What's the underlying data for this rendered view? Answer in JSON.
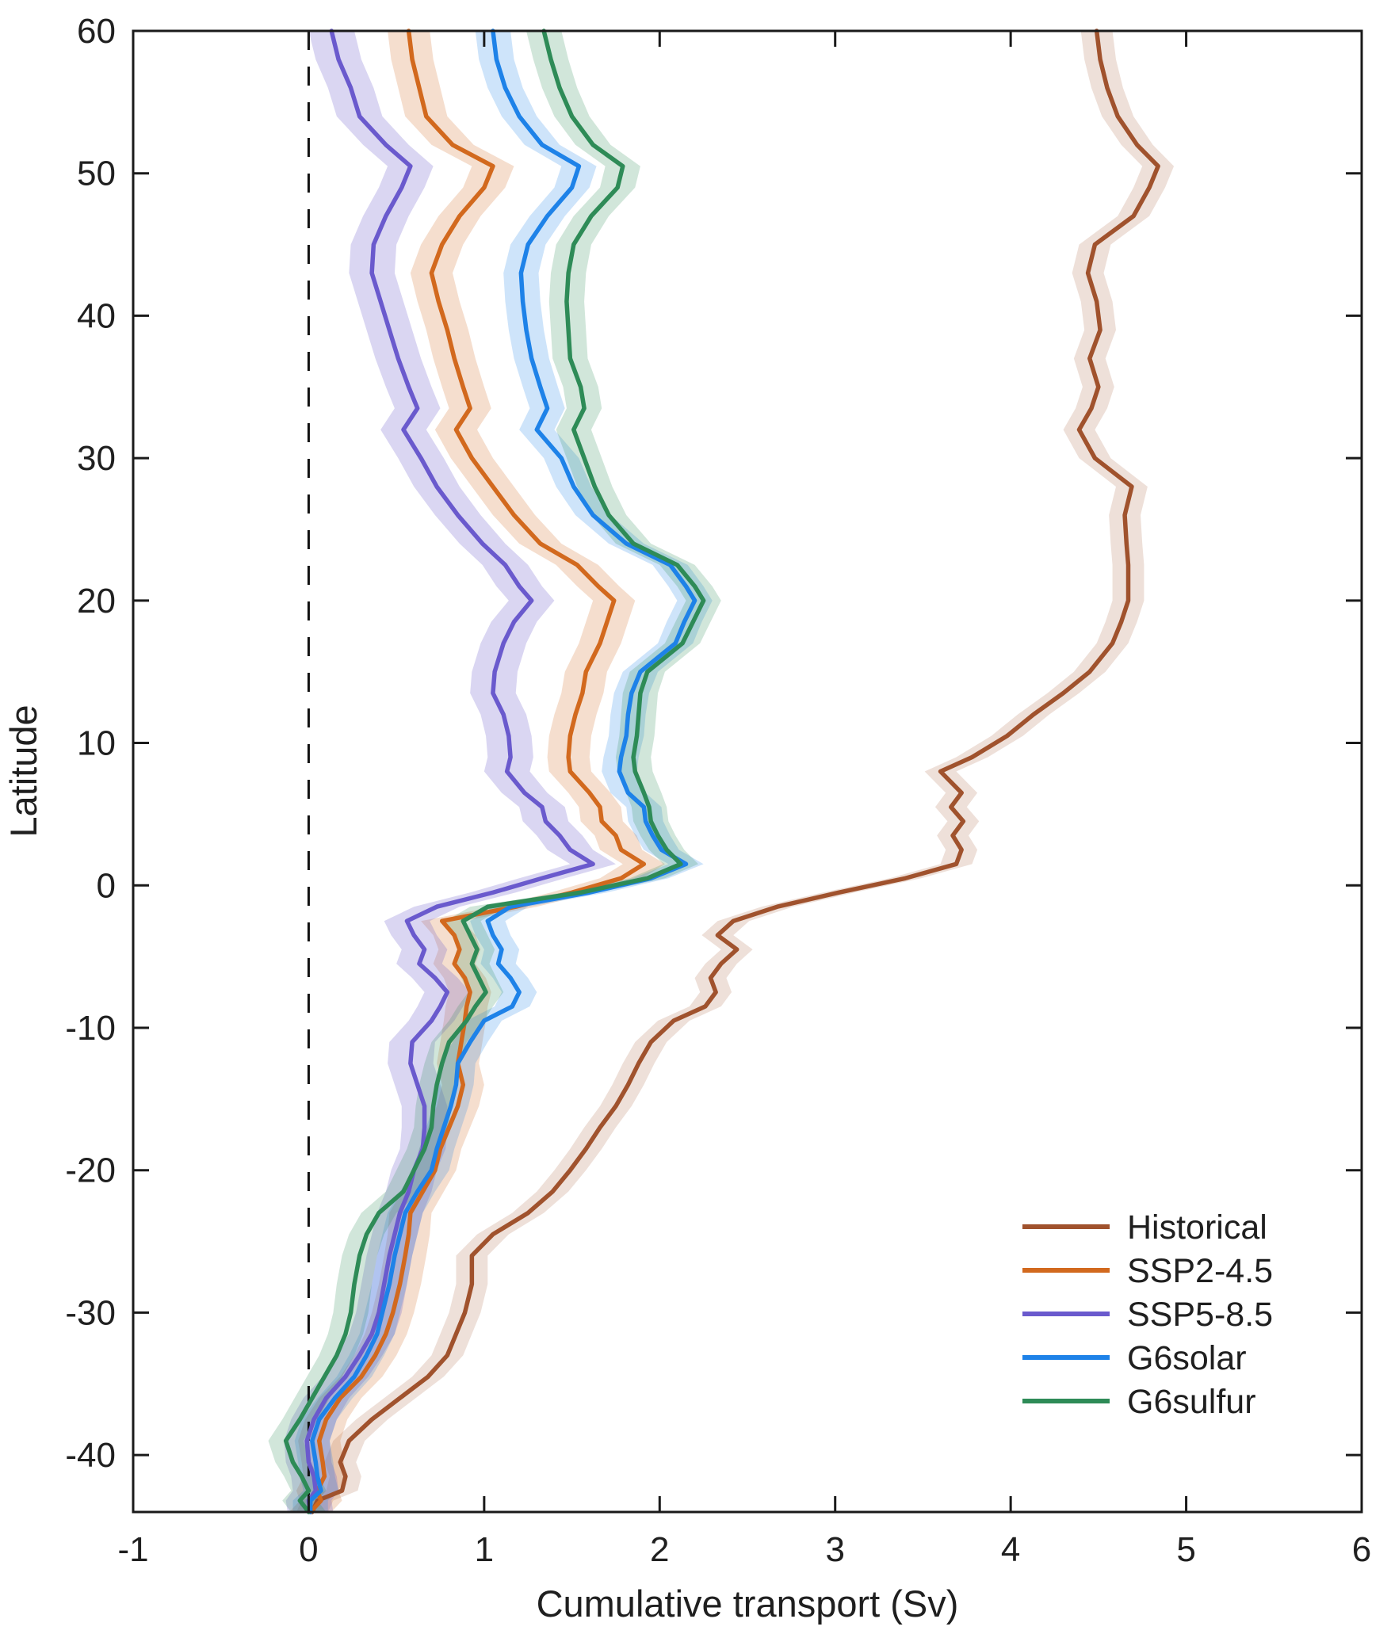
{
  "figure": {
    "background": "#ffffff",
    "axis_color": "#1a1a1a",
    "text_color": "#1f1f1f"
  },
  "chart_data": {
    "type": "line",
    "title": "",
    "xlabel": "Cumulative transport (Sv)",
    "ylabel": "Latitude",
    "xlim": [
      -1,
      6
    ],
    "ylim": [
      -44,
      60
    ],
    "xticks": [
      -1,
      0,
      1,
      2,
      3,
      4,
      5,
      6
    ],
    "yticks": [
      60,
      50,
      40,
      30,
      20,
      10,
      0,
      -10,
      -20,
      -30,
      -40
    ],
    "grid": false,
    "zero_reference_line": {
      "x": 0,
      "style": "dashed",
      "color": "#111111"
    },
    "legend": {
      "position": "lower-right",
      "frame": false,
      "entries": [
        "Historical",
        "SSP2-4.5",
        "SSP5-8.5",
        "G6solar",
        "G6sulfur"
      ]
    },
    "latitudes": [
      60,
      58,
      56,
      54,
      52,
      50.5,
      49,
      47,
      45,
      43,
      41,
      39,
      37,
      35,
      33.5,
      32,
      30,
      28,
      26,
      24,
      22.5,
      21,
      20,
      18.5,
      17,
      15,
      13.5,
      12,
      10.5,
      9,
      8,
      6.5,
      5.5,
      4.5,
      3.5,
      2.5,
      1.5,
      0.5,
      -0.5,
      -1.5,
      -2.5,
      -3.5,
      -4.5,
      -5.5,
      -6.5,
      -7.5,
      -8.5,
      -9.5,
      -11,
      -12.5,
      -14,
      -15.5,
      -17,
      -18.5,
      -20,
      -21.5,
      -23,
      -24.5,
      -26,
      -28,
      -30,
      -31.5,
      -33,
      -34.5,
      -36,
      -37.5,
      -39,
      -40.5,
      -41.5,
      -42.5,
      -43.2,
      -44
    ],
    "series": [
      {
        "name": "Historical",
        "color": "#A0522D",
        "band_opacity": 0.18,
        "band_halfwidth_sv": 0.09,
        "values": [
          4.49,
          4.51,
          4.55,
          4.61,
          4.72,
          4.84,
          4.79,
          4.7,
          4.48,
          4.44,
          4.49,
          4.51,
          4.45,
          4.5,
          4.46,
          4.39,
          4.48,
          4.69,
          4.65,
          4.66,
          4.67,
          4.67,
          4.67,
          4.63,
          4.58,
          4.45,
          4.3,
          4.13,
          3.98,
          3.78,
          3.6,
          3.72,
          3.66,
          3.73,
          3.67,
          3.72,
          3.69,
          3.4,
          3.02,
          2.67,
          2.42,
          2.33,
          2.44,
          2.35,
          2.29,
          2.32,
          2.26,
          2.08,
          1.95,
          1.88,
          1.82,
          1.75,
          1.66,
          1.58,
          1.49,
          1.39,
          1.25,
          1.05,
          0.93,
          0.93,
          0.89,
          0.84,
          0.79,
          0.68,
          0.52,
          0.36,
          0.23,
          0.18,
          0.21,
          0.19,
          0.05,
          0.02
        ]
      },
      {
        "name": "SSP2-4.5",
        "color": "#D2691E",
        "band_opacity": 0.22,
        "band_halfwidth_sv": 0.12,
        "values": [
          0.57,
          0.59,
          0.63,
          0.67,
          0.82,
          1.05,
          1.0,
          0.86,
          0.76,
          0.7,
          0.74,
          0.79,
          0.83,
          0.88,
          0.92,
          0.84,
          0.93,
          1.05,
          1.17,
          1.32,
          1.53,
          1.65,
          1.74,
          1.7,
          1.66,
          1.58,
          1.56,
          1.52,
          1.49,
          1.48,
          1.49,
          1.6,
          1.66,
          1.67,
          1.75,
          1.78,
          1.91,
          1.78,
          1.5,
          1.18,
          0.76,
          0.83,
          0.86,
          0.83,
          0.89,
          0.92,
          0.9,
          0.89,
          0.87,
          0.85,
          0.88,
          0.85,
          0.8,
          0.75,
          0.72,
          0.65,
          0.58,
          0.57,
          0.55,
          0.52,
          0.48,
          0.44,
          0.38,
          0.3,
          0.18,
          0.1,
          0.06,
          0.08,
          0.09,
          0.05,
          0.07,
          0.01
        ]
      },
      {
        "name": "SSP5-8.5",
        "color": "#6A5ACD",
        "band_opacity": 0.25,
        "band_halfwidth_sv": 0.13,
        "values": [
          0.13,
          0.17,
          0.24,
          0.29,
          0.44,
          0.58,
          0.53,
          0.44,
          0.37,
          0.36,
          0.41,
          0.46,
          0.51,
          0.57,
          0.62,
          0.54,
          0.64,
          0.73,
          0.85,
          0.99,
          1.12,
          1.2,
          1.27,
          1.17,
          1.11,
          1.06,
          1.05,
          1.11,
          1.14,
          1.15,
          1.13,
          1.23,
          1.33,
          1.35,
          1.43,
          1.49,
          1.62,
          1.33,
          1.05,
          0.73,
          0.56,
          0.6,
          0.66,
          0.63,
          0.72,
          0.79,
          0.75,
          0.7,
          0.59,
          0.58,
          0.62,
          0.66,
          0.66,
          0.65,
          0.6,
          0.57,
          0.52,
          0.49,
          0.46,
          0.43,
          0.4,
          0.36,
          0.29,
          0.21,
          0.1,
          0.03,
          -0.01,
          0.0,
          0.03,
          0.04,
          0.0,
          0.01
        ]
      },
      {
        "name": "G6solar",
        "color": "#1E82E8",
        "band_opacity": 0.22,
        "band_halfwidth_sv": 0.1,
        "values": [
          1.05,
          1.07,
          1.12,
          1.2,
          1.33,
          1.54,
          1.5,
          1.36,
          1.25,
          1.21,
          1.22,
          1.24,
          1.27,
          1.32,
          1.36,
          1.3,
          1.44,
          1.51,
          1.62,
          1.81,
          2.06,
          2.15,
          2.2,
          2.14,
          2.09,
          1.89,
          1.84,
          1.82,
          1.81,
          1.78,
          1.77,
          1.82,
          1.91,
          1.92,
          1.96,
          2.01,
          2.15,
          1.95,
          1.6,
          1.15,
          1.02,
          1.05,
          1.1,
          1.08,
          1.15,
          1.2,
          1.16,
          1.0,
          0.92,
          0.85,
          0.84,
          0.81,
          0.77,
          0.73,
          0.7,
          0.62,
          0.55,
          0.52,
          0.49,
          0.46,
          0.42,
          0.39,
          0.33,
          0.26,
          0.15,
          0.06,
          0.02,
          0.04,
          0.05,
          0.07,
          0.01,
          0.01
        ]
      },
      {
        "name": "G6sulfur",
        "color": "#2E8B57",
        "band_opacity": 0.22,
        "band_halfwidth_sv": 0.1,
        "values": [
          1.34,
          1.38,
          1.43,
          1.5,
          1.62,
          1.79,
          1.76,
          1.61,
          1.51,
          1.48,
          1.47,
          1.48,
          1.49,
          1.55,
          1.57,
          1.51,
          1.57,
          1.63,
          1.71,
          1.85,
          2.1,
          2.2,
          2.25,
          2.19,
          2.13,
          1.93,
          1.89,
          1.88,
          1.87,
          1.85,
          1.86,
          1.91,
          1.94,
          1.95,
          1.99,
          2.04,
          2.12,
          1.93,
          1.55,
          1.02,
          0.88,
          0.92,
          0.96,
          0.93,
          0.97,
          1.01,
          0.95,
          0.9,
          0.8,
          0.76,
          0.73,
          0.71,
          0.7,
          0.66,
          0.6,
          0.54,
          0.4,
          0.33,
          0.29,
          0.26,
          0.24,
          0.21,
          0.16,
          0.09,
          0.02,
          -0.05,
          -0.13,
          -0.09,
          -0.04,
          0.0,
          -0.05,
          0.0
        ]
      }
    ]
  }
}
